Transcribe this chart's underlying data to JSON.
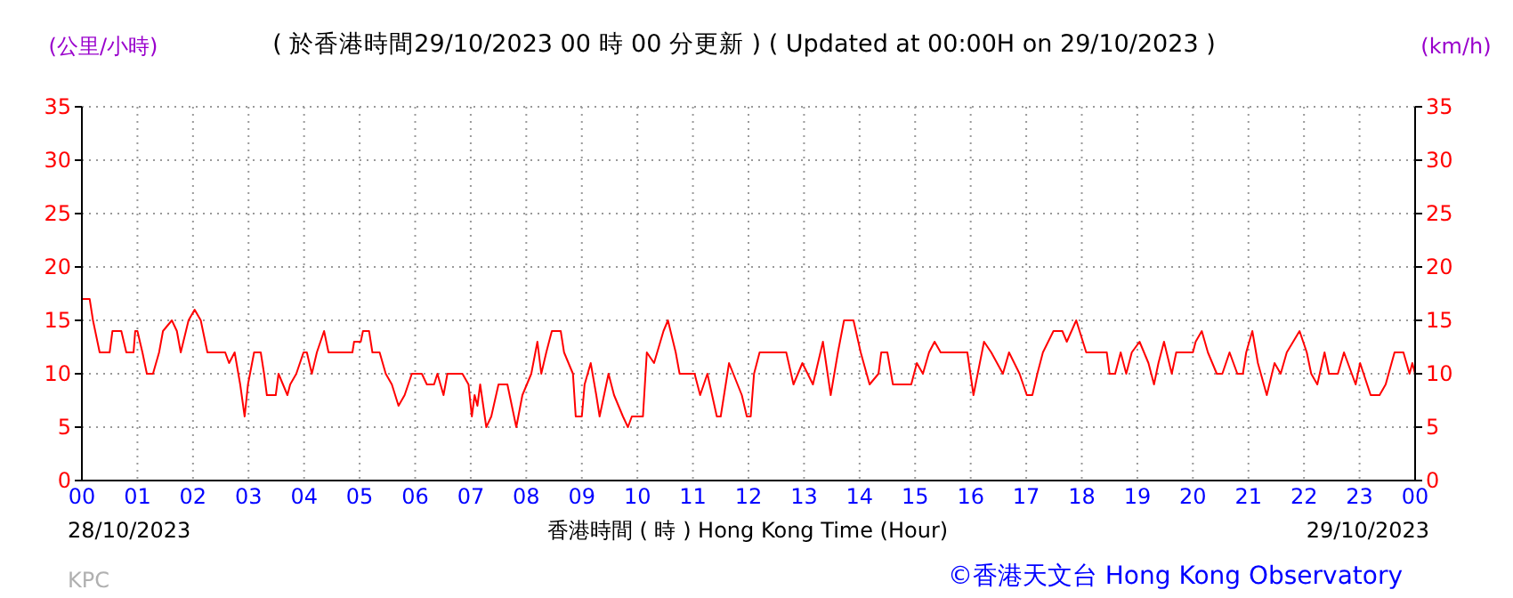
{
  "chart_data": {
    "type": "line",
    "title": "( 於香港時間29/10/2023 00 時 00 分更新 ) ( Updated at 00:00H on 29/10/2023 )",
    "ylabel": "(公里/小時)",
    "y2label": "(km/h)",
    "xlabel": "香港時間 ( 時 ) Hong Kong Time (Hour)",
    "annotations": [
      "28/10/2023",
      "29/10/2023",
      "KPC",
      "©香港天文台 Hong Kong Observatory"
    ],
    "xlim": [
      0,
      24
    ],
    "xticks": [
      {
        "value": 0,
        "label": "00"
      },
      {
        "value": 1,
        "label": "01"
      },
      {
        "value": 2,
        "label": "02"
      },
      {
        "value": 3,
        "label": "03"
      },
      {
        "value": 4,
        "label": "04"
      },
      {
        "value": 5,
        "label": "05"
      },
      {
        "value": 6,
        "label": "06"
      },
      {
        "value": 7,
        "label": "07"
      },
      {
        "value": 8,
        "label": "08"
      },
      {
        "value": 9,
        "label": "09"
      },
      {
        "value": 10,
        "label": "10"
      },
      {
        "value": 11,
        "label": "11"
      },
      {
        "value": 12,
        "label": "12"
      },
      {
        "value": 13,
        "label": "13"
      },
      {
        "value": 14,
        "label": "14"
      },
      {
        "value": 15,
        "label": "15"
      },
      {
        "value": 16,
        "label": "16"
      },
      {
        "value": 17,
        "label": "17"
      },
      {
        "value": 18,
        "label": "18"
      },
      {
        "value": 19,
        "label": "19"
      },
      {
        "value": 20,
        "label": "20"
      },
      {
        "value": 21,
        "label": "21"
      },
      {
        "value": 22,
        "label": "22"
      },
      {
        "value": 23,
        "label": "23"
      },
      {
        "value": 24,
        "label": "00"
      }
    ],
    "ylim": [
      0,
      35
    ],
    "yticks": [
      0,
      5,
      10,
      15,
      20,
      25,
      30,
      35
    ],
    "y2lim": [
      0,
      35
    ],
    "y2ticks": [
      0,
      5,
      10,
      15,
      20,
      25,
      30,
      35
    ],
    "grid": true,
    "marker": "none",
    "line_style": "solid",
    "series": [
      {
        "color": "#ff0000",
        "x": [
          0,
          0.14,
          0.2,
          0.32,
          0.5,
          0.55,
          0.71,
          0.8,
          0.93,
          0.96,
          1.0,
          1.09,
          1.17,
          1.28,
          1.39,
          1.46,
          1.62,
          1.71,
          1.78,
          1.92,
          2.03,
          2.14,
          2.26,
          2.58,
          2.65,
          2.75,
          2.85,
          2.93,
          2.99,
          3.1,
          3.22,
          3.28,
          3.33,
          3.49,
          3.54,
          3.7,
          3.75,
          3.86,
          3.99,
          4.05,
          4.14,
          4.23,
          4.36,
          4.44,
          4.87,
          4.9,
          5.02,
          5.06,
          5.17,
          5.23,
          5.36,
          5.47,
          5.58,
          5.7,
          5.81,
          5.94,
          6.12,
          6.21,
          6.34,
          6.4,
          6.51,
          6.58,
          6.85,
          6.96,
          7.02,
          7.07,
          7.12,
          7.17,
          7.28,
          7.37,
          7.5,
          7.66,
          7.82,
          7.93,
          8.09,
          8.2,
          8.27,
          8.36,
          8.46,
          8.62,
          8.68,
          8.84,
          8.89,
          9.0,
          9.05,
          9.16,
          9.26,
          9.32,
          9.48,
          9.58,
          9.74,
          9.83,
          9.9,
          10.1,
          10.17,
          10.3,
          10.47,
          10.55,
          10.69,
          10.76,
          11.03,
          11.13,
          11.26,
          11.43,
          11.5,
          11.65,
          11.88,
          11.97,
          12.04,
          12.1,
          12.2,
          12.36,
          12.68,
          12.81,
          12.97,
          13.16,
          13.34,
          13.48,
          13.61,
          13.72,
          13.89,
          14.02,
          14.18,
          14.34,
          14.39,
          14.5,
          14.6,
          14.93,
          15.03,
          15.14,
          15.25,
          15.35,
          15.46,
          15.94,
          16.05,
          16.24,
          16.37,
          16.58,
          16.69,
          16.88,
          17.01,
          17.11,
          17.2,
          17.3,
          17.49,
          17.65,
          17.73,
          17.9,
          18.08,
          18.45,
          18.5,
          18.6,
          18.7,
          18.8,
          18.9,
          19.04,
          19.2,
          19.3,
          19.38,
          19.48,
          19.62,
          19.7,
          20.0,
          20.05,
          20.16,
          20.27,
          20.43,
          20.53,
          20.66,
          20.8,
          20.9,
          20.96,
          21.07,
          21.17,
          21.33,
          21.47,
          21.58,
          21.69,
          21.92,
          22.05,
          22.13,
          22.24,
          22.37,
          22.45,
          22.61,
          22.72,
          22.86,
          22.93,
          23.01,
          23.2,
          23.36,
          23.47,
          23.63,
          23.79,
          23.9,
          23.95,
          24.0
        ],
        "values": [
          17,
          17,
          15,
          12,
          12,
          14,
          14,
          12,
          12,
          14,
          14,
          12,
          10,
          10,
          12,
          14,
          15,
          14,
          12,
          15,
          16,
          15,
          12,
          12,
          11,
          12,
          9,
          6,
          9,
          12,
          12,
          10,
          8,
          8,
          10,
          8,
          9,
          10,
          12,
          12,
          10,
          12,
          14,
          12,
          12,
          13,
          13,
          14,
          14,
          12,
          12,
          10,
          9,
          7,
          8,
          10,
          10,
          9,
          9,
          10,
          8,
          10,
          10,
          9,
          6,
          8,
          7,
          9,
          5,
          6,
          9,
          9,
          5,
          8,
          10,
          13,
          10,
          12,
          14,
          14,
          12,
          10,
          6,
          6,
          9,
          11,
          8,
          6,
          10,
          8,
          6,
          5,
          6,
          6,
          12,
          11,
          14,
          15,
          12,
          10,
          10,
          8,
          10,
          6,
          6,
          11,
          8,
          6,
          6,
          10,
          12,
          12,
          12,
          9,
          11,
          9,
          13,
          8,
          12,
          15,
          15,
          12,
          9,
          10,
          12,
          12,
          9,
          9,
          11,
          10,
          12,
          13,
          12,
          12,
          8,
          13,
          12,
          10,
          12,
          10,
          8,
          8,
          10,
          12,
          14,
          14,
          13,
          15,
          12,
          12,
          10,
          10,
          12,
          10,
          12,
          13,
          11,
          9,
          11,
          13,
          10,
          12,
          12,
          13,
          14,
          12,
          10,
          10,
          12,
          10,
          10,
          12,
          14,
          11,
          8,
          11,
          10,
          12,
          14,
          12,
          10,
          9,
          12,
          10,
          10,
          12,
          10,
          9,
          11,
          8,
          8,
          9,
          12,
          12,
          10,
          11,
          10
        ]
      }
    ]
  }
}
